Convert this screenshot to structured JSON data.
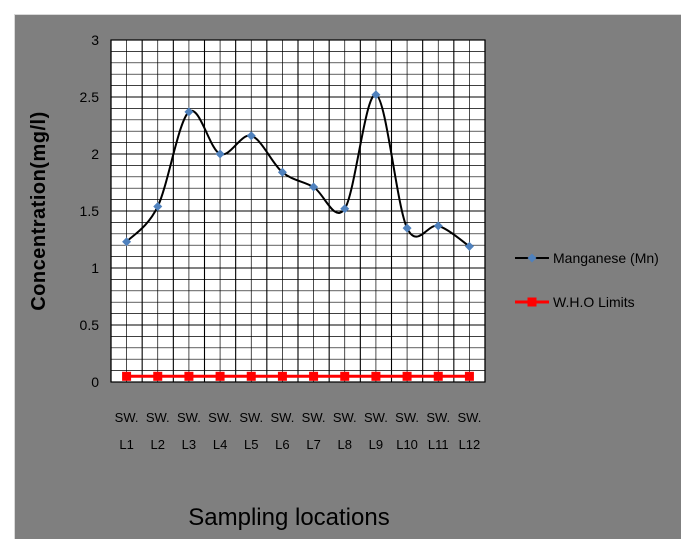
{
  "chart_data": {
    "type": "line",
    "categories": [
      [
        "SW.",
        "L1"
      ],
      [
        "SW.",
        "L2"
      ],
      [
        "SW.",
        "L3"
      ],
      [
        "SW.",
        "L4"
      ],
      [
        "SW.",
        "L5"
      ],
      [
        "SW.",
        "L6"
      ],
      [
        "SW.",
        "L7"
      ],
      [
        "SW.",
        "L8"
      ],
      [
        "SW.",
        "L9"
      ],
      [
        "SW.",
        "L10"
      ],
      [
        "SW.",
        "L11"
      ],
      [
        "SW.",
        "L12"
      ]
    ],
    "series": [
      {
        "name": "Manganese (Mn)",
        "values": [
          1.23,
          1.54,
          2.37,
          2.0,
          2.16,
          1.84,
          1.71,
          1.52,
          2.52,
          1.35,
          1.37,
          1.19
        ],
        "color": "#000000",
        "marker_color": "#4f81bd",
        "marker": "diamond",
        "smooth": true
      },
      {
        "name": "W.H.O Limits",
        "values": [
          0.05,
          0.05,
          0.05,
          0.05,
          0.05,
          0.05,
          0.05,
          0.05,
          0.05,
          0.05,
          0.05,
          0.05
        ],
        "color": "#ff0000",
        "marker_color": "#ff0000",
        "marker": "square",
        "smooth": false
      }
    ],
    "ylabel": "Concentration(mg/l)",
    "xlabel": "Sampling locations",
    "ylim": [
      0,
      3
    ],
    "yticks": [
      "0",
      "0.5",
      "1",
      "1.5",
      "2",
      "2.5",
      "3"
    ],
    "grid": true,
    "legend_position": "right",
    "background_color": "#7f7f7f",
    "plot_background_color": "#ffffff"
  }
}
